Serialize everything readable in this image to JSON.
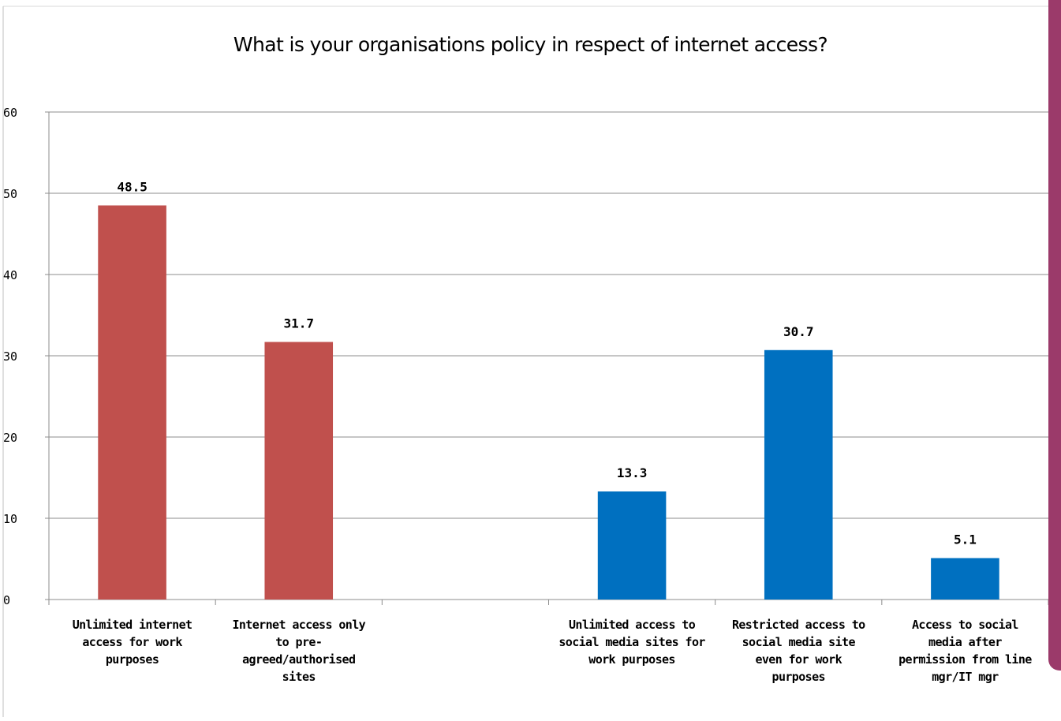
{
  "chart_data": {
    "type": "bar",
    "title": "What is your organisations policy in respect of internet access?",
    "xlabel": "",
    "ylabel": "",
    "ylim": [
      0,
      60
    ],
    "yticks": [
      0,
      10,
      20,
      30,
      40,
      50,
      60
    ],
    "grid": true,
    "legend": "none",
    "categories": [
      [
        "Unlimited internet",
        "access for work",
        "purposes"
      ],
      [
        "Internet access only",
        "to pre-",
        "agreed/authorised",
        "sites"
      ],
      [],
      [
        "Unlimited access to",
        "social media sites for",
        "work purposes"
      ],
      [
        "Restricted access to",
        "social media site",
        "even for work",
        "purposes"
      ],
      [
        "Access to social",
        "media after",
        "permission from line",
        "mgr/IT mgr"
      ]
    ],
    "values": [
      48.5,
      31.7,
      null,
      13.3,
      30.7,
      5.1
    ],
    "data_labels": [
      "48.5",
      "31.7",
      "",
      "13.3",
      "30.7",
      "5.1"
    ],
    "colors": [
      "#c0504d",
      "#c0504d",
      null,
      "#0070c0",
      "#0070c0",
      "#0070c0"
    ]
  }
}
